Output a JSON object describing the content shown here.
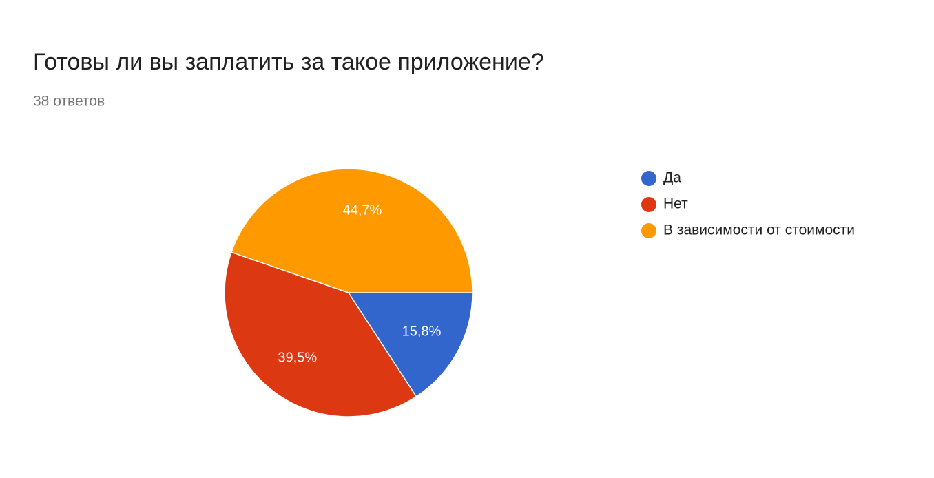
{
  "chart_data": {
    "type": "pie",
    "title": "Готовы ли вы заплатить за такое приложение?",
    "subtitle": "38 ответов",
    "categories": [
      "Да",
      "Нет",
      "В зависимости от стоимости"
    ],
    "values": [
      15.8,
      39.5,
      44.7
    ],
    "value_labels": [
      "15,8%",
      "39,5%",
      "44,7%"
    ],
    "colors": [
      "#3366cc",
      "#dc3912",
      "#ff9900"
    ],
    "legend": "right"
  }
}
